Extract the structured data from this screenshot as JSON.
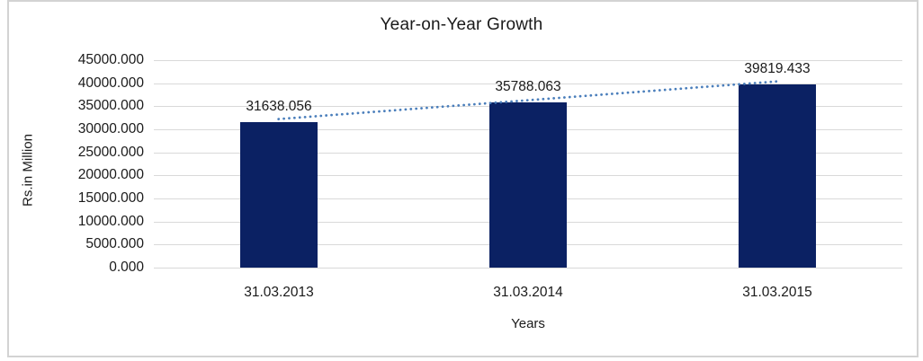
{
  "chart_data": {
    "type": "bar",
    "title": "Year-on-Year Growth",
    "xlabel": "Years",
    "ylabel": "Rs.in Million",
    "categories": [
      "31.03.2013",
      "31.03.2014",
      "31.03.2015"
    ],
    "values": [
      31638.056,
      35788.063,
      39819.433
    ],
    "data_labels": [
      "31638.056",
      "35788.063",
      "39819.433"
    ],
    "ylim": [
      0,
      45000
    ],
    "ytick_step": 5000,
    "ytick_labels_top_to_bottom": [
      "45000.000",
      "40000.000",
      "35000.000",
      "30000.000",
      "25000.000",
      "20000.000",
      "15000.000",
      "10000.000",
      "5000.000",
      "0.000"
    ],
    "grid": true,
    "legend": "none",
    "trendline": "linear-dotted",
    "colors": {
      "bar": "#0b2163",
      "trendline": "#4a7ebb",
      "gridline": "#d9d9d9",
      "text": "#1a1a1a",
      "frame_border": "#d3d3d3",
      "background": "#ffffff"
    }
  }
}
